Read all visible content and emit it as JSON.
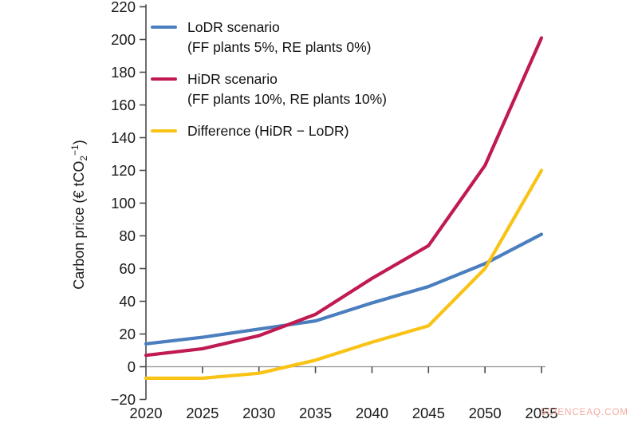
{
  "page": {
    "background": "#ffffff"
  },
  "watermark": {
    "text": "SCIENCEAQ.COM",
    "color": "#f5ab9f"
  },
  "chart_data": {
    "type": "line",
    "title": "",
    "x": [
      2020,
      2025,
      2030,
      2035,
      2040,
      2045,
      2050,
      2055
    ],
    "series": [
      {
        "name": "LoDR scenario",
        "detail": "(FF plants 5%, RE plants 0%)",
        "color": "#4a7ebf",
        "values": [
          14,
          18,
          23,
          28,
          39,
          49,
          63,
          81
        ]
      },
      {
        "name": "HiDR scenario",
        "detail": "(FF plants 10%, RE plants 10%)",
        "color": "#c01a50",
        "values": [
          7,
          11,
          19,
          32,
          54,
          74,
          123,
          201
        ]
      },
      {
        "name": "Difference (HiDR − LoDR)",
        "detail": "",
        "color": "#f9c316",
        "values": [
          -7,
          -7,
          -4,
          4,
          15,
          25,
          60,
          120
        ]
      }
    ],
    "xlabel": "",
    "ylabel": "Carbon price (€ tCO2−1)",
    "ylabel_parts": {
      "prefix": "Carbon price (€ tCO",
      "sub": "2",
      "sup": "−1",
      "suffix": ")"
    },
    "ylim": [
      -20,
      220
    ],
    "xlim": [
      2020,
      2055
    ],
    "yticks": [
      220,
      200,
      180,
      160,
      140,
      120,
      100,
      80,
      60,
      40,
      20,
      0,
      -20
    ],
    "xticks": [
      2020,
      2025,
      2030,
      2035,
      2040,
      2045,
      2050,
      2055
    ],
    "legend_position": "top-left",
    "grid": false,
    "zero_line": true,
    "axis_color": "#4a4a4a",
    "zero_line_color": "#909090",
    "tick_label_color": "#1a1a1a"
  }
}
